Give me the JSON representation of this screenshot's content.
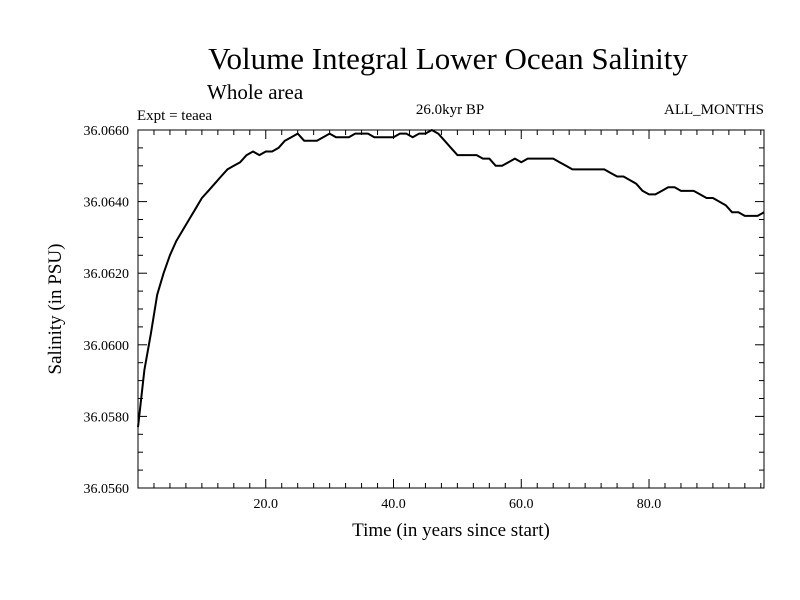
{
  "header": {
    "title": "Volume Integral Lower Ocean Salinity",
    "subtitle": "Whole area",
    "expt_label": "Expt = teaea",
    "period_label": "26.0kyr BP",
    "months_label": "ALL_MONTHS"
  },
  "chart_data": {
    "type": "line",
    "title": "Volume Integral Lower Ocean Salinity",
    "subtitle": "Whole area",
    "xlabel": "Time (in years since start)",
    "ylabel": "Salinity (in PSU)",
    "xlim": [
      0,
      98
    ],
    "ylim": [
      36.056,
      36.066
    ],
    "x_ticks": [
      20,
      40,
      60,
      80
    ],
    "x_tick_labels": [
      "20.0",
      "40.0",
      "60.0",
      "80.0"
    ],
    "y_ticks": [
      36.056,
      36.058,
      36.06,
      36.062,
      36.064,
      36.066
    ],
    "y_tick_labels": [
      "36.0560",
      "36.0580",
      "36.0600",
      "36.0620",
      "36.0640",
      "36.0660"
    ],
    "grid": false,
    "series": [
      {
        "name": "Lower ocean salinity",
        "x": [
          0,
          1,
          2,
          3,
          4,
          5,
          6,
          7,
          8,
          9,
          10,
          11,
          12,
          13,
          14,
          15,
          16,
          17,
          18,
          19,
          20,
          21,
          22,
          23,
          24,
          25,
          26,
          27,
          28,
          29,
          30,
          31,
          32,
          33,
          34,
          35,
          36,
          37,
          38,
          39,
          40,
          41,
          42,
          43,
          44,
          45,
          46,
          47,
          48,
          49,
          50,
          51,
          52,
          53,
          54,
          55,
          56,
          57,
          58,
          59,
          60,
          61,
          62,
          63,
          64,
          65,
          66,
          67,
          68,
          69,
          70,
          71,
          72,
          73,
          74,
          75,
          76,
          77,
          78,
          79,
          80,
          81,
          82,
          83,
          84,
          85,
          86,
          87,
          88,
          89,
          90,
          91,
          92,
          93,
          94,
          95,
          96,
          97,
          98
        ],
        "values": [
          36.0577,
          36.0593,
          36.0603,
          36.0614,
          36.062,
          36.0625,
          36.0629,
          36.0632,
          36.0635,
          36.0638,
          36.0641,
          36.0643,
          36.0645,
          36.0647,
          36.0649,
          36.065,
          36.0651,
          36.0653,
          36.0654,
          36.0653,
          36.0654,
          36.0654,
          36.0655,
          36.0657,
          36.0658,
          36.0659,
          36.0657,
          36.0657,
          36.0657,
          36.0658,
          36.0659,
          36.0658,
          36.0658,
          36.0658,
          36.0659,
          36.0659,
          36.0659,
          36.0658,
          36.0658,
          36.0658,
          36.0658,
          36.0659,
          36.0659,
          36.0658,
          36.0659,
          36.0659,
          36.066,
          36.0659,
          36.0657,
          36.0655,
          36.0653,
          36.0653,
          36.0653,
          36.0653,
          36.0652,
          36.0652,
          36.065,
          36.065,
          36.0651,
          36.0652,
          36.0651,
          36.0652,
          36.0652,
          36.0652,
          36.0652,
          36.0652,
          36.0651,
          36.065,
          36.0649,
          36.0649,
          36.0649,
          36.0649,
          36.0649,
          36.0649,
          36.0648,
          36.0647,
          36.0647,
          36.0646,
          36.0645,
          36.0643,
          36.0642,
          36.0642,
          36.0643,
          36.0644,
          36.0644,
          36.0643,
          36.0643,
          36.0643,
          36.0642,
          36.0641,
          36.0641,
          36.064,
          36.0639,
          36.0637,
          36.0637,
          36.0636,
          36.0636,
          36.0636,
          36.0637
        ]
      }
    ]
  }
}
